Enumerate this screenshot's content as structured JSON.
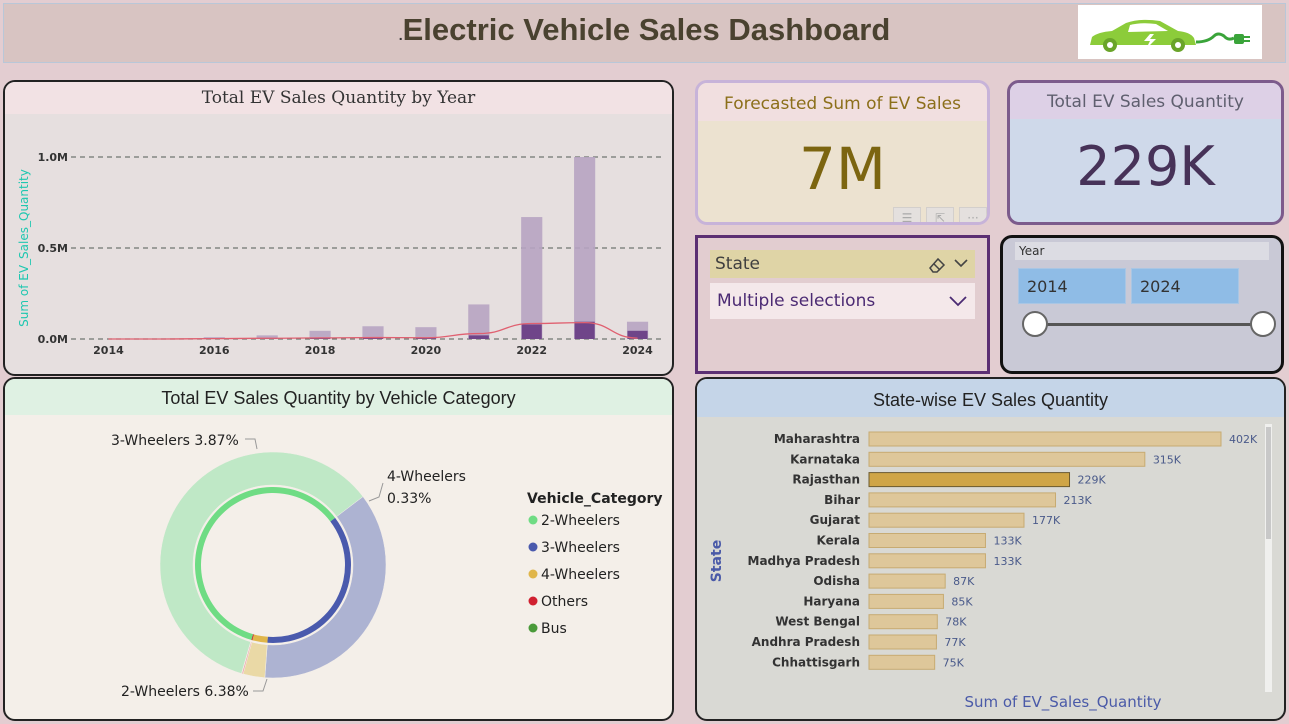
{
  "header": {
    "title_prefix": ".",
    "title": "Electric Vehicle Sales Dashboard",
    "logo_icon": "ev-car-plug-icon"
  },
  "kpis": {
    "forecast": {
      "label": "Forecasted Sum of EV Sales",
      "value": "7M",
      "value_color": "#7c6510"
    },
    "total": {
      "label": "Total EV Sales Quantity",
      "value": "229K",
      "value_color": "#473258"
    },
    "visual_header_icons": [
      "filter-icon",
      "focus-mode-icon",
      "more-options-icon"
    ]
  },
  "state_slicer": {
    "label": "State",
    "selection": "Multiple selections"
  },
  "year_slicer": {
    "label": "Year",
    "start": "2014",
    "end": "2024",
    "range_fraction": [
      0,
      1
    ]
  },
  "chart_data": [
    {
      "type": "bar",
      "title": "Total EV Sales Quantity by Year",
      "xlabel": "",
      "ylabel": "Sum of EV_Sales_Quantity",
      "x_ticks": [
        "2014",
        "2016",
        "2018",
        "2020",
        "2022",
        "2024"
      ],
      "y_ticks": [
        "0.0M",
        "0.5M",
        "1.0M"
      ],
      "ylim": [
        0,
        1.0
      ],
      "grid": true,
      "categories": [
        "2014",
        "2015",
        "2016",
        "2017",
        "2018",
        "2019",
        "2020",
        "2021",
        "2022",
        "2023",
        "2024"
      ],
      "series": [
        {
          "values": [
            0.0,
            0.0,
            0.01,
            0.02,
            0.045,
            0.07,
            0.065,
            0.19,
            0.67,
            1.0,
            0.095
          ],
          "color": "#b7a4c2"
        },
        {
          "values": [
            0.0,
            0.0,
            0.001,
            0.002,
            0.004,
            0.006,
            0.005,
            0.02,
            0.08,
            0.095,
            0.045
          ],
          "color": "#6a3f86"
        }
      ],
      "trend_line": {
        "values": [
          0.0,
          0.0,
          0.002,
          0.004,
          0.006,
          0.008,
          0.007,
          0.03,
          0.085,
          0.09,
          0.005
        ],
        "color": "#e06070"
      }
    },
    {
      "type": "pie",
      "donut": true,
      "title": "Total EV Sales Quantity by Vehicle Category",
      "legend_title": "Vehicle_Category",
      "legend_position": "right",
      "slices": [
        {
          "label": "2-Wheelers",
          "value": 6.38,
          "color": "#bfe8c6",
          "inner_color": "#6fdc84"
        },
        {
          "label": "3-Wheelers",
          "value": 3.87,
          "color": "#adb3d2",
          "inner_color": "#4a5aad"
        },
        {
          "label": "4-Wheelers",
          "value": 0.33,
          "color": "#ead9a6",
          "inner_color": "#e0b64a"
        },
        {
          "label": "Others",
          "value": 0.02,
          "color": "#f0a0a8",
          "inner_color": "#d02030"
        },
        {
          "label": "Bus",
          "value": 0.005,
          "color": "#a8d8a0",
          "inner_color": "#4a9a3a"
        }
      ],
      "data_labels": [
        {
          "text": "3-Wheelers 3.87%"
        },
        {
          "text": "4-Wheelers"
        },
        {
          "text": "0.33%"
        },
        {
          "text": "2-Wheelers 6.38%"
        }
      ]
    },
    {
      "type": "bar",
      "orientation": "horizontal",
      "title": "State-wise EV Sales Quantity",
      "xlabel": "Sum of EV_Sales_Quantity",
      "ylabel": "State",
      "xlim": [
        0,
        402
      ],
      "categories": [
        "Maharashtra",
        "Karnataka",
        "Rajasthan",
        "Bihar",
        "Gujarat",
        "Kerala",
        "Madhya Pradesh",
        "Odisha",
        "Haryana",
        "West Bengal",
        "Andhra Pradesh",
        "Chhattisgarh"
      ],
      "values": [
        402,
        315,
        229,
        213,
        177,
        133,
        133,
        87,
        85,
        78,
        77,
        75
      ],
      "value_labels": [
        "402K",
        "315K",
        "229K",
        "213K",
        "177K",
        "133K",
        "133K",
        "87K",
        "85K",
        "78K",
        "77K",
        "75K"
      ],
      "highlight": "Rajasthan",
      "colors": {
        "bar": "#dec79a",
        "bar_border": "#c7ab72",
        "highlight": "#cfa547",
        "highlight_border": "#6b5a30",
        "label": "#4a5a8a"
      }
    }
  ]
}
